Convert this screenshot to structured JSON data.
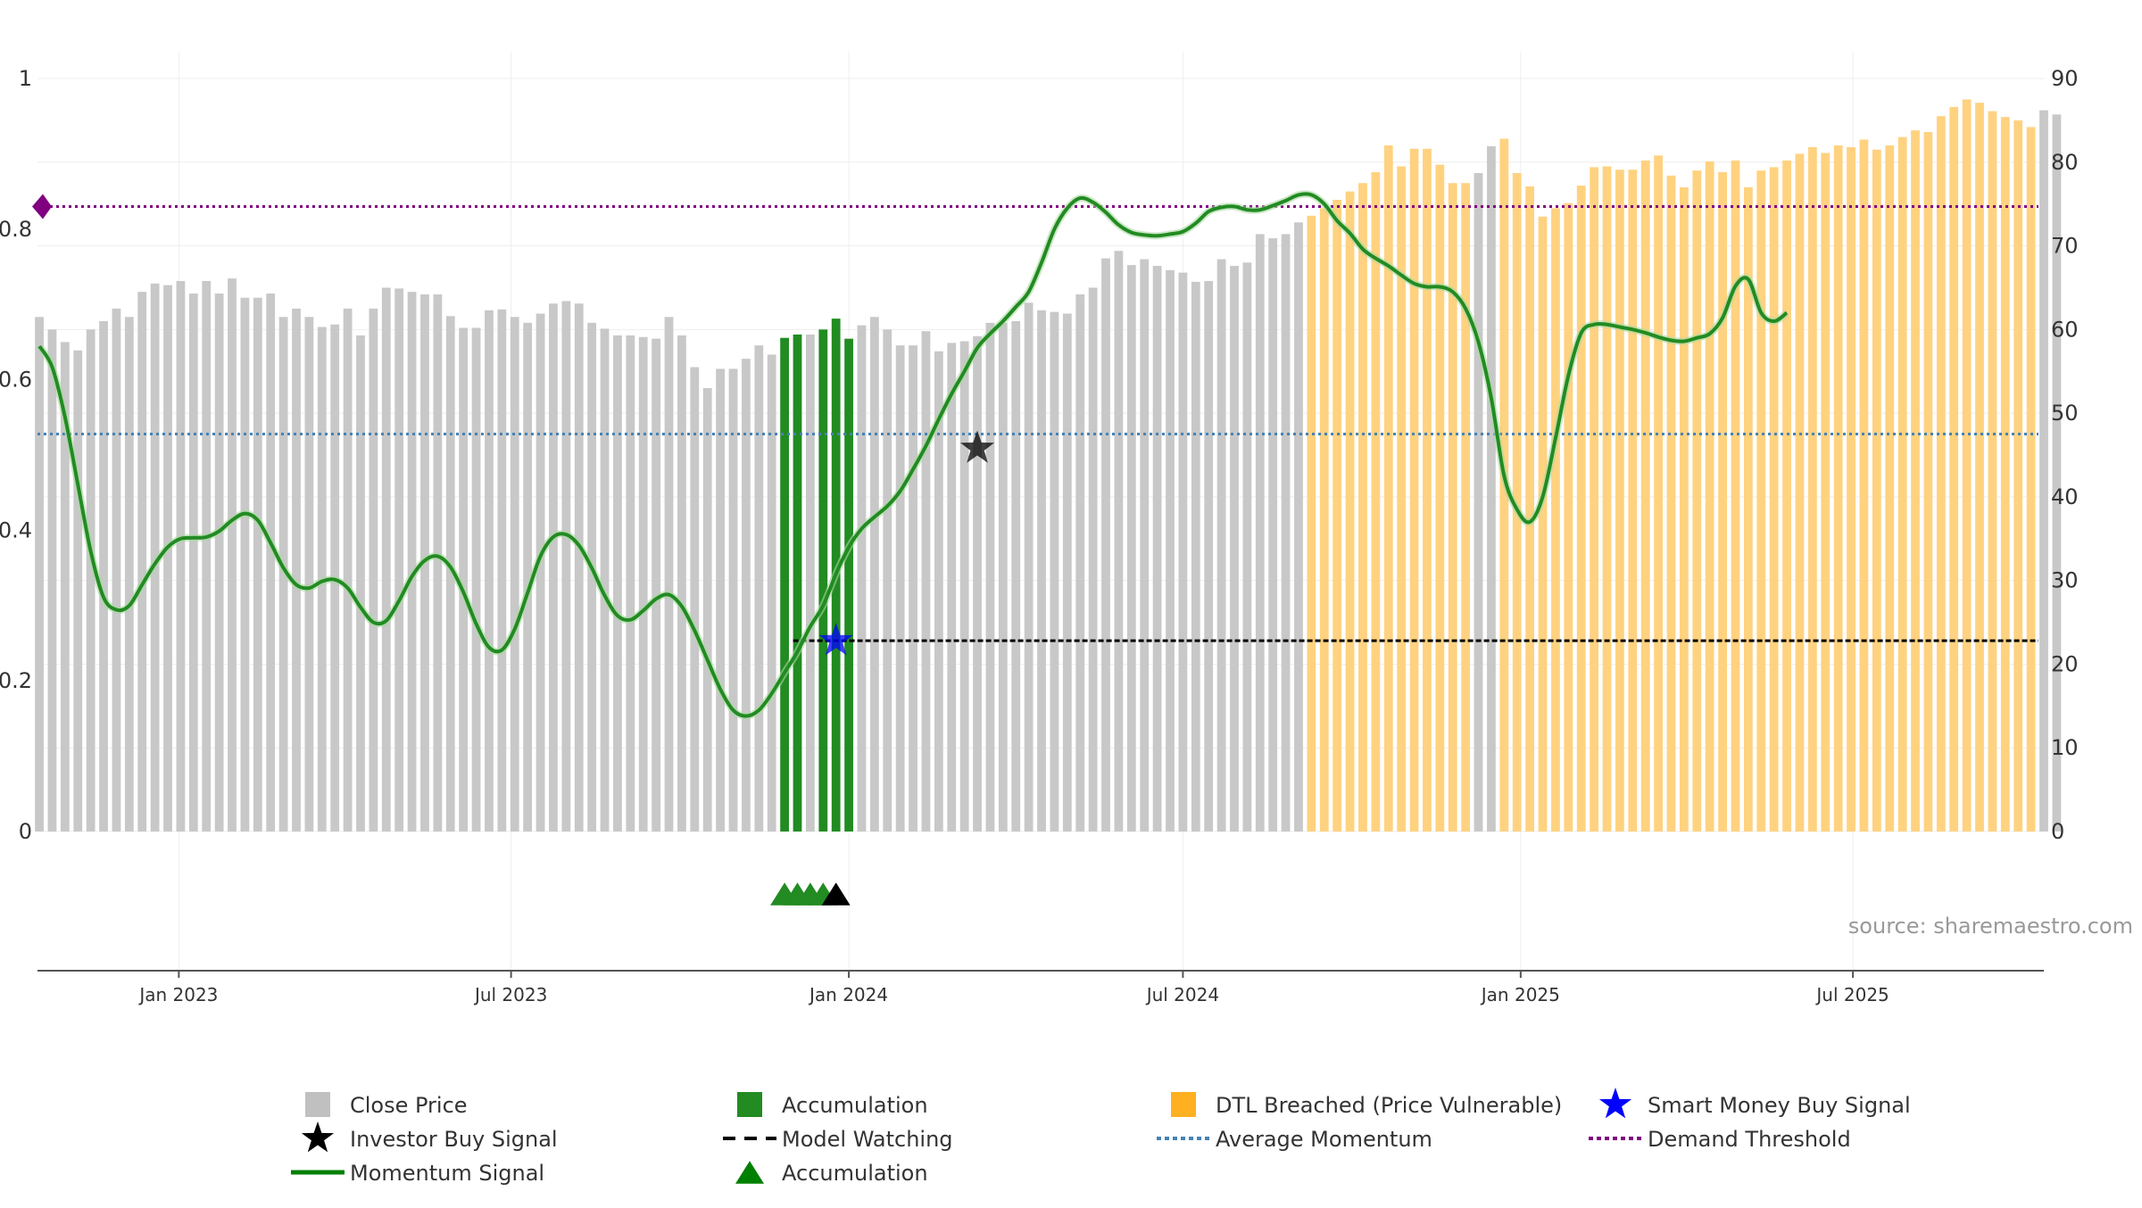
{
  "chart_data": {
    "type": "bar",
    "title": "",
    "xlabel": "",
    "ylabel": "",
    "source": "source: sharemaestro.com",
    "x_range": [
      "2022-10-16",
      "2025-10-13"
    ],
    "x_ticks": [
      {
        "label": "Jan 2023",
        "date": "2023-01-01"
      },
      {
        "label": "Jul 2023",
        "date": "2023-07-01"
      },
      {
        "label": "Jan 2024",
        "date": "2024-01-01"
      },
      {
        "label": "Jul 2024",
        "date": "2024-07-01"
      },
      {
        "label": "Jan 2025",
        "date": "2025-01-01"
      },
      {
        "label": "Jul 2025",
        "date": "2025-07-01"
      }
    ],
    "y_left": {
      "range": [
        0,
        1
      ],
      "ticks": [
        0,
        0.2,
        0.4,
        0.6,
        0.8,
        1
      ]
    },
    "y_right": {
      "range": [
        0,
        90
      ],
      "ticks": [
        0,
        10,
        20,
        30,
        40,
        50,
        60,
        70,
        80,
        90
      ]
    },
    "start_date": "2022-10-17",
    "bar_interval_days": 7,
    "close_price": [
      61.5,
      60,
      58.5,
      57.5,
      60,
      61,
      62.5,
      61.5,
      64.5,
      65.5,
      65.3,
      65.8,
      64.3,
      65.8,
      64.3,
      66.1,
      63.8,
      63.8,
      64.3,
      61.5,
      62.5,
      61.5,
      60.3,
      60.6,
      62.5,
      59.3,
      62.5,
      65,
      64.9,
      64.5,
      64.2,
      64.2,
      61.6,
      60.2,
      60.2,
      62.3,
      62.4,
      61.5,
      60.8,
      61.9,
      63.1,
      63.4,
      63.1,
      60.8,
      60.1,
      59.3,
      59.3,
      59.1,
      58.9,
      61.5,
      59.3,
      55.5,
      53,
      55.3,
      55.3,
      56.5,
      58.1,
      57,
      59,
      59.4,
      59.4,
      60,
      61.3,
      58.9,
      60.5,
      61.5,
      60,
      58.1,
      58.1,
      59.8,
      57.4,
      58.4,
      58.6,
      59.2,
      60.8,
      60.8,
      61,
      63.2,
      62.3,
      62.1,
      61.9,
      64.2,
      65,
      68.5,
      69.4,
      67.7,
      68.4,
      67.6,
      67.1,
      66.8,
      65.7,
      65.8,
      68.4,
      67.6,
      68,
      71.4,
      70.9,
      71.4,
      72.8,
      73.6,
      74.5,
      75.5,
      76.5,
      77.5,
      78.8,
      82,
      79.5,
      81.6,
      81.6,
      79.7,
      77.5,
      77.5,
      78.7,
      81.9,
      82.8,
      78.7,
      77.1,
      73.5,
      74.5,
      75.1,
      77.2,
      79.4,
      79.5,
      79.1,
      79.1,
      80.2,
      80.8,
      78.4,
      77,
      79,
      80.1,
      78.8,
      80.2,
      77,
      79,
      79.4,
      80.2,
      81,
      81.8,
      81.1,
      82,
      81.8,
      82.7,
      81.5,
      82,
      83,
      83.8,
      83.6,
      85.5,
      86.6,
      87.5,
      87.1,
      86.1,
      85.4,
      85,
      84.2,
      86.2,
      85.7
    ],
    "zones": [
      {
        "name": "Accumulation",
        "from_index": 58,
        "to_index": 63,
        "exclude_index": [
          60
        ],
        "color": "#228b22"
      },
      {
        "name": "DTL Breached (Price Vulnerable)",
        "from_index": 99,
        "to_index": 155,
        "exclude_index": [
          112,
          113
        ],
        "color": "#ffd280"
      }
    ],
    "series": [
      {
        "name": "Momentum Signal",
        "axis": "right",
        "color": "#228b22",
        "values": [
          58,
          55.5,
          49.5,
          41.5,
          33.5,
          28,
          26.5,
          27,
          29.5,
          32,
          34,
          35,
          35.1,
          35.2,
          35.9,
          37.2,
          38,
          37.2,
          34.5,
          31.5,
          29.5,
          29.1,
          29.9,
          30.1,
          29.1,
          26.8,
          25,
          25.2,
          27.6,
          30.5,
          32.4,
          32.9,
          31.6,
          28.6,
          24.8,
          22,
          21.7,
          24.2,
          28.5,
          32.9,
          35.2,
          35.5,
          34.2,
          31.5,
          28.2,
          25.8,
          25.3,
          26.4,
          27.8,
          28.3,
          26.9,
          24,
          20.5,
          17,
          14.5,
          13.8,
          14.5,
          16.5,
          19,
          21.5,
          24.5,
          27,
          30.8,
          34,
          36.2,
          37.6,
          38.9,
          40.7,
          43.3,
          46.1,
          49.3,
          52.3,
          55,
          57.8,
          59.5,
          61,
          62.7,
          64.5,
          68,
          72,
          74.5,
          75.7,
          75.2,
          74,
          72.5,
          71.6,
          71.3,
          71.2,
          71.4,
          71.7,
          72.7,
          74.1,
          74.6,
          74.7,
          74.3,
          74.3,
          74.8,
          75.4,
          76.1,
          76.1,
          75,
          73,
          71.5,
          69.6,
          68.5,
          67.6,
          66.5,
          65.5,
          65.1,
          65.1,
          64.5,
          62.5,
          58.5,
          51.8,
          42.5,
          38.5,
          37,
          40,
          47,
          54.5,
          59.6,
          60.6,
          60.6,
          60.3,
          60,
          59.6,
          59.1,
          58.7,
          58.6,
          59,
          59.5,
          61.4,
          65.2,
          66,
          62,
          61,
          62
        ]
      },
      {
        "name": "Average Momentum",
        "axis": "right",
        "value": 47.5,
        "style": "dotted",
        "color": "#4682b4"
      },
      {
        "name": "Demand Threshold",
        "axis": "right",
        "value": 74.7,
        "style": "dotted",
        "color": "#800080"
      },
      {
        "name": "Model Watching",
        "axis": "right",
        "value": 22.8,
        "from_index": 59,
        "style": "dashed",
        "color": "#000000"
      }
    ],
    "signals": [
      {
        "name": "Smart Money Buy Signal",
        "index": 62,
        "axis": "right",
        "value": 22.8,
        "marker": "star",
        "color": "#0000ff"
      },
      {
        "name": "Investor Buy Signal",
        "index": 73,
        "axis": "right",
        "value": 45.8,
        "marker": "star",
        "color": "#000000"
      },
      {
        "name": "Accumulation",
        "marker": "triangle",
        "color": "#228b22",
        "indices": [
          58,
          59,
          60,
          61
        ]
      },
      {
        "name": "Accumulation",
        "marker": "triangle",
        "color": "#000000",
        "indices": [
          62
        ]
      }
    ],
    "legend": {
      "placement": "bottom",
      "items": [
        {
          "label": "Close Price",
          "icon": "square",
          "color": "#c0c0c0"
        },
        {
          "label": "Accumulation",
          "icon": "square",
          "color": "#228b22"
        },
        {
          "label": "DTL Breached (Price Vulnerable)",
          "icon": "square",
          "color": "#ffb020"
        },
        {
          "label": "Smart Money Buy Signal",
          "icon": "star",
          "color": "#0000ff"
        },
        {
          "label": "Investor Buy Signal",
          "icon": "star",
          "color": "#000000"
        },
        {
          "label": "Model Watching",
          "icon": "dash",
          "color": "#000000"
        },
        {
          "label": "Average Momentum",
          "icon": "dot",
          "color": "#4682b4"
        },
        {
          "label": "Demand Threshold",
          "icon": "dot",
          "color": "#800080"
        },
        {
          "label": "Momentum Signal",
          "icon": "line",
          "color": "#008000"
        },
        {
          "label": "Accumulation",
          "icon": "triangle",
          "color": "#008000"
        }
      ]
    },
    "grid": true
  }
}
